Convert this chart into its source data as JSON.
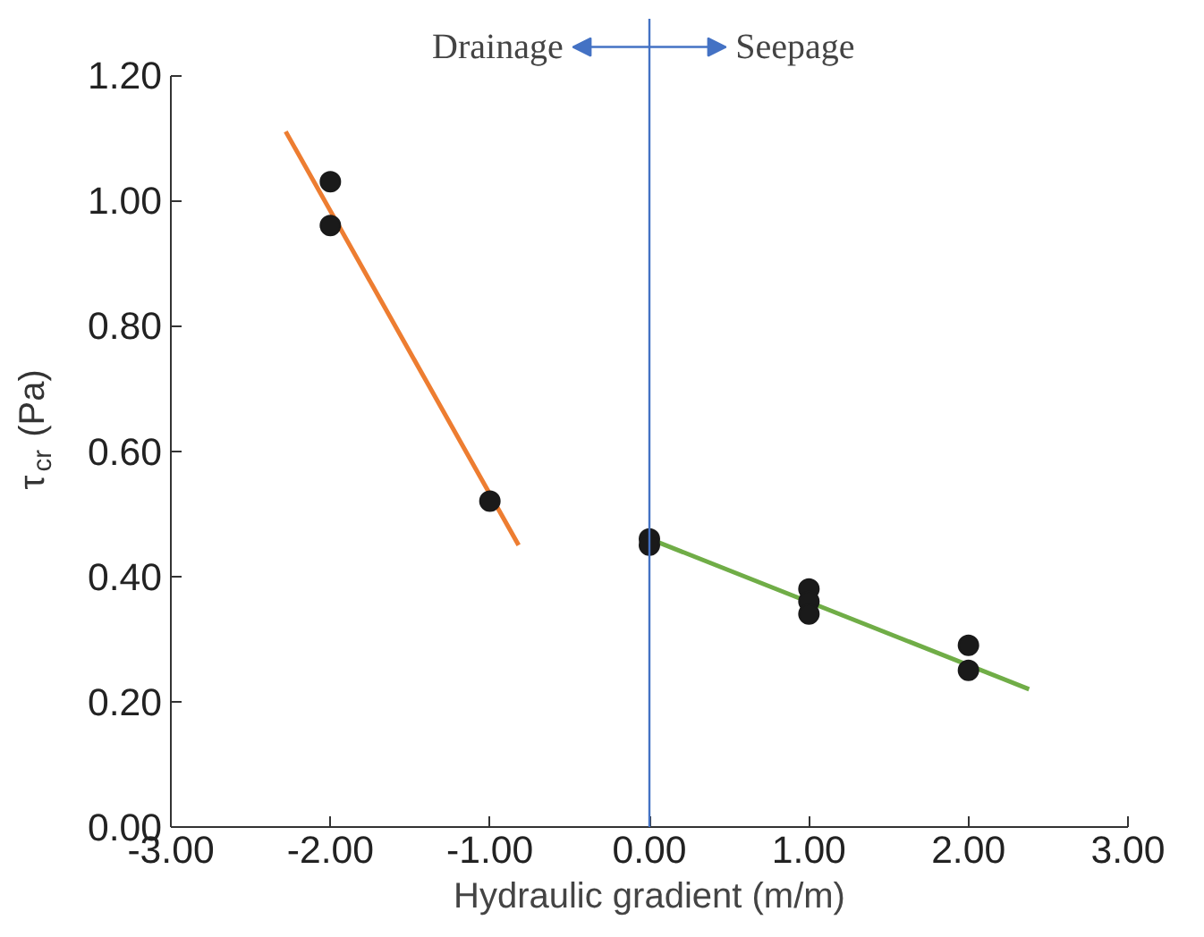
{
  "chart_data": {
    "type": "scatter",
    "xlabel": "Hydraulic gradient (m/m)",
    "ylabel": "τ$_{cr}$ (Pa)",
    "xlim": [
      -3,
      3
    ],
    "ylim": [
      0,
      1.2
    ],
    "xticks": [
      {
        "value": -3,
        "label": "-3.00"
      },
      {
        "value": -2,
        "label": "-2.00"
      },
      {
        "value": -1,
        "label": "-1.00"
      },
      {
        "value": 0,
        "label": "0.00"
      },
      {
        "value": 1,
        "label": "1.00"
      },
      {
        "value": 2,
        "label": "2.00"
      },
      {
        "value": 3,
        "label": "3.00"
      }
    ],
    "yticks": [
      {
        "value": 0,
        "label": "0.00"
      },
      {
        "value": 0.2,
        "label": "0.20"
      },
      {
        "value": 0.4,
        "label": "0.40"
      },
      {
        "value": 0.6,
        "label": "0.60"
      },
      {
        "value": 0.8,
        "label": "0.80"
      },
      {
        "value": 1,
        "label": "1.00"
      },
      {
        "value": 1.2,
        "label": "1.20"
      }
    ],
    "grid": false,
    "marker": "circle",
    "series": [
      {
        "color": "#1a1a1a",
        "x": [
          -2,
          -2,
          -1,
          0,
          0,
          1,
          1,
          1,
          2,
          2
        ],
        "values": [
          1.03,
          0.96,
          0.52,
          0.46,
          0.45,
          0.38,
          0.36,
          0.34,
          0.29,
          0.25
        ]
      },
      {
        "type": "line",
        "color": "#ed7d31",
        "x": [
          -2.28,
          -0.82
        ],
        "values": [
          1.11,
          0.45
        ],
        "marker": "none"
      },
      {
        "type": "line",
        "color": "#70ad47",
        "x": [
          0,
          2.38
        ],
        "values": [
          0.46,
          0.22
        ],
        "marker": "none"
      }
    ],
    "ref_lines": [
      {
        "axis": "x",
        "value": 0,
        "color": "#4472c4"
      }
    ],
    "annotations": [
      "Drainage",
      "Seepage"
    ]
  }
}
